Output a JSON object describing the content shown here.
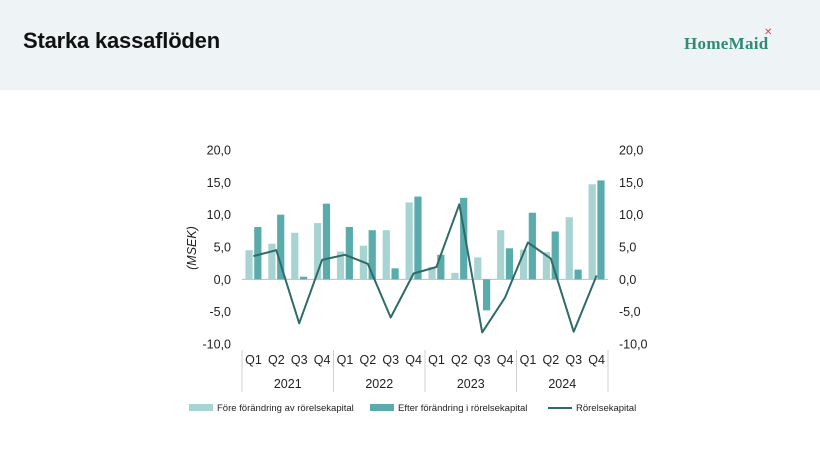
{
  "header": {
    "title": "Starka kassaflöden",
    "logo_text": "HomeMaid",
    "logo_mark": "✕"
  },
  "colors": {
    "header_bg": "#eef4f6",
    "before": "#a8d3d3",
    "after": "#5aabab",
    "line": "#2f6b68"
  },
  "chart_data": {
    "type": "bar",
    "ylabel": "(MSEK)",
    "ylim": [
      -10,
      20
    ],
    "yticks": [
      "-10,0",
      "-5,0",
      "0,0",
      "5,0",
      "10,0",
      "15,0",
      "20,0"
    ],
    "yticks_right": [
      "-10,0",
      "-5,0",
      "0,0",
      "5,0",
      "10,0",
      "15,0",
      "20,0"
    ],
    "quarters": [
      "Q1",
      "Q2",
      "Q3",
      "Q4",
      "Q1",
      "Q2",
      "Q3",
      "Q4",
      "Q1",
      "Q2",
      "Q3",
      "Q4",
      "Q1",
      "Q2",
      "Q3",
      "Q4"
    ],
    "years": [
      "2021",
      "2022",
      "2023",
      "2024"
    ],
    "series": [
      {
        "name": "Före förändring av rörelsekapital",
        "type": "bar",
        "values": [
          4.5,
          5.5,
          7.2,
          8.7,
          4.3,
          5.2,
          7.6,
          11.9,
          1.9,
          1.0,
          3.4,
          7.6,
          4.6,
          4.2,
          9.6,
          14.7
        ]
      },
      {
        "name": "Efter förändring i rörelsekapital",
        "type": "bar",
        "values": [
          8.1,
          10.0,
          0.4,
          11.7,
          8.1,
          7.6,
          1.7,
          12.8,
          3.8,
          12.6,
          -4.8,
          4.8,
          10.3,
          7.4,
          1.5,
          15.3
        ]
      },
      {
        "name": "Rörelsekapital",
        "type": "line",
        "values": [
          3.6,
          4.5,
          -6.8,
          3.0,
          3.8,
          2.4,
          -5.9,
          0.9,
          1.9,
          11.6,
          -8.2,
          -2.8,
          5.7,
          3.2,
          -8.1,
          0.6
        ]
      }
    ]
  }
}
